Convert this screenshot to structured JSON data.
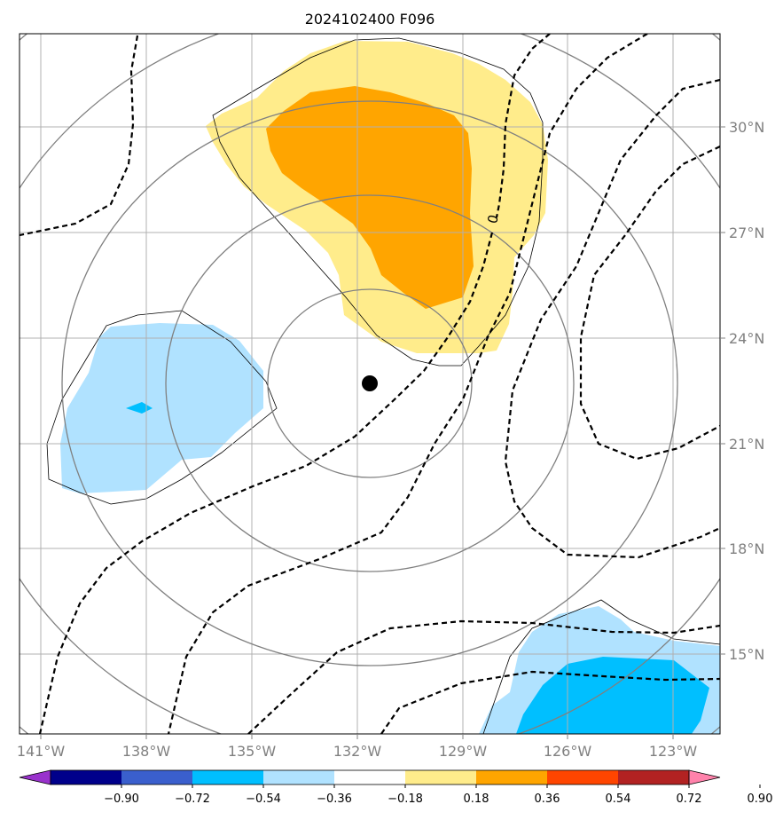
{
  "chart_data": {
    "type": "heatmap",
    "title": "2024102400 F096",
    "projection": "map",
    "xlabel": "",
    "ylabel": "",
    "x_ticks": [
      "141°W",
      "138°W",
      "135°W",
      "132°W",
      "129°W",
      "126°W",
      "123°W"
    ],
    "y_ticks": [
      "30°N",
      "27°N",
      "24°N",
      "21°N",
      "18°N",
      "15°N"
    ],
    "lon_range": [
      -141.6,
      -121.6
    ],
    "lat_range": [
      12.7,
      32.7
    ],
    "grid": true,
    "center_marker": {
      "label": "storm-center",
      "lon": -131.7,
      "lat": 22.7
    },
    "colorbar": {
      "levels": [
        "−0.90",
        "−0.72",
        "−0.54",
        "−0.36",
        "−0.18",
        "0.18",
        "0.36",
        "0.54",
        "0.72",
        "0.90"
      ],
      "colors": [
        "#9932cc",
        "#00008b",
        "#3a5fcd",
        "#00bfff",
        "#b0e2ff",
        "#ffffff",
        "#ffec8b",
        "#ffa500",
        "#ff4500",
        "#b22222",
        "#ff82ab"
      ],
      "extend": "both"
    },
    "contour_labels": [
      "0"
    ],
    "series": [
      {
        "name": "positive anomaly (0.18–0.36)",
        "color": "#ffec8b"
      },
      {
        "name": "positive anomaly (0.36–0.54)",
        "color": "#ffa500"
      },
      {
        "name": "negative anomaly (−0.36–−0.18)",
        "color": "#b0e2ff"
      },
      {
        "name": "negative anomaly (−0.54–−0.36)",
        "color": "#00bfff"
      },
      {
        "name": "range rings",
        "color": "#808080"
      },
      {
        "name": "dashed contours",
        "color": "#000000"
      }
    ]
  }
}
